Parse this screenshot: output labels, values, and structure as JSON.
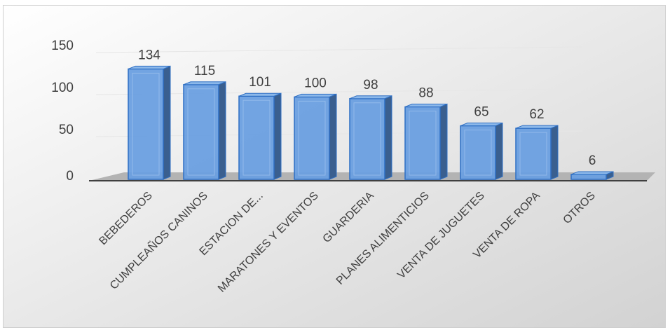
{
  "chart_data": {
    "type": "bar",
    "categories": [
      "BEBEDEROS",
      "CUMPLEAÑOS CANINOS",
      "ESTACION DE...",
      "MARATONES Y EVENTOS",
      "GUARDERIA",
      "PLANES ALIMENTICIOS",
      "VENTA DE JUGUETES",
      "VENTA DE ROPA",
      "OTROS"
    ],
    "values": [
      134,
      115,
      101,
      100,
      98,
      88,
      65,
      62,
      6
    ],
    "title": "",
    "xlabel": "",
    "ylabel": "",
    "ylim": [
      0,
      150
    ],
    "yticks": [
      0,
      50,
      100,
      150
    ],
    "grid": true,
    "legend": "none",
    "style": "3d",
    "colors": {
      "bar_front": "#6a9fe0",
      "bar_side": "#3a5f8f",
      "bar_top": "#8cb8ea",
      "bar_edge": "#2e6fc4",
      "floor": "#b3b3b3",
      "background_light": "#ffffff",
      "background_dark": "#d2d2d2",
      "gridline": "#e6e6e6",
      "text": "#404040"
    }
  }
}
